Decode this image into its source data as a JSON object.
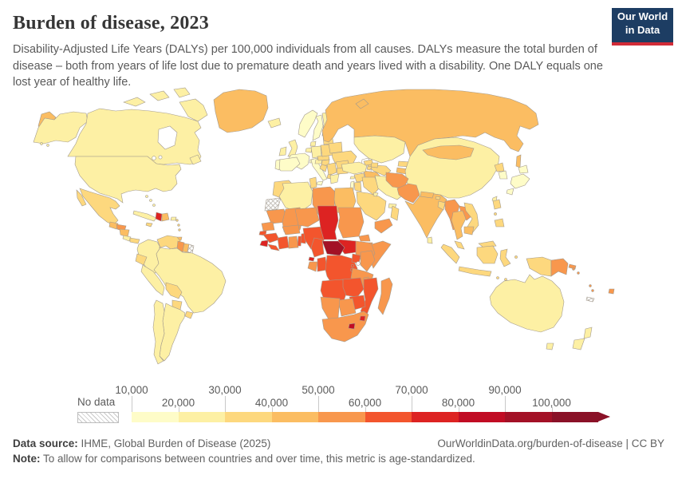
{
  "header": {
    "title": "Burden of disease, 2023",
    "subtitle": "Disability-Adjusted Life Years (DALYs) per 100,000 individuals from all causes. DALYs measure the total burden of disease – both from years of life lost due to premature death and years lived with a disability. One DALY equals one lost year of healthy life."
  },
  "logo": {
    "line1": "Our World",
    "line2": "in Data",
    "bg_color": "#1d3d63",
    "accent_color": "#d22b37"
  },
  "legend": {
    "no_data_label": "No data",
    "tick_labels": [
      "10,000",
      "20,000",
      "30,000",
      "40,000",
      "50,000",
      "60,000",
      "70,000",
      "80,000",
      "90,000",
      "100,000"
    ]
  },
  "footer": {
    "data_source_label": "Data source:",
    "data_source_text": " IHME, Global Burden of Disease (2025)",
    "link_text": "OurWorldinData.org/burden-of-disease | CC BY",
    "note_label": "Note:",
    "note_text": " To allow for comparisons between countries and over time, this metric is age-standardized."
  },
  "chart_data": {
    "type": "choropleth",
    "title": "Burden of disease, 2023",
    "unit": "DALYs per 100,000 individuals",
    "year": 2023,
    "legend_position": "bottom",
    "no_data_color": "hatched",
    "bins": [
      {
        "label": "10,000–20,000",
        "color": "#fefcc8"
      },
      {
        "label": "20,000–30,000",
        "color": "#fdf0a4"
      },
      {
        "label": "30,000–40,000",
        "color": "#fdd87e"
      },
      {
        "label": "40,000–50,000",
        "color": "#fbbd62"
      },
      {
        "label": "50,000–60,000",
        "color": "#f8974d"
      },
      {
        "label": "60,000–70,000",
        "color": "#f3552d"
      },
      {
        "label": "70,000–80,000",
        "color": "#dd2322"
      },
      {
        "label": "80,000–90,000",
        "color": "#c10c24"
      },
      {
        "label": "90,000–100,000",
        "color": "#a31126"
      },
      {
        "label": "100,000+",
        "color": "#8a1127"
      }
    ],
    "countries": {
      "Russia": 4,
      "Canada": 2,
      "United States": 2,
      "Greenland": 4,
      "Iceland": 2,
      "Mexico": 3,
      "Guatemala": 4,
      "Honduras": 5,
      "Nicaragua": 4,
      "Costa Rica": 2,
      "Panama": 3,
      "Cuba": 2,
      "Jamaica": 3,
      "Haiti": 7,
      "Dominican Republic": 4,
      "Puerto Rico": 2,
      "Bahamas": 2,
      "Lesser Antilles": 3,
      "Trinidad and Tobago": 4,
      "Colombia": 2,
      "Venezuela": 3,
      "Guyana": 5,
      "Suriname": 4,
      "French Guiana": "no_data",
      "Ecuador": 3,
      "Peru": 2,
      "Brazil": 2,
      "Bolivia": 3,
      "Paraguay": 3,
      "Uruguay": 3,
      "Argentina": 2,
      "Chile": 2,
      "Ireland": 2,
      "United Kingdom": 2,
      "Norway": 1,
      "Sweden": 1,
      "Finland": 2,
      "Denmark": 2,
      "Netherlands": 2,
      "Germany": 2,
      "France": 1,
      "Spain": 1,
      "Portugal": 1,
      "Italy": 1,
      "Switzerland": 1,
      "Austria": 2,
      "Czechia": 3,
      "Poland": 3,
      "Baltic states": 3,
      "Belarus": 3,
      "Ukraine": 3,
      "Hungary": 3,
      "Romania": 3,
      "Bulgaria": 3,
      "Serbia": 3,
      "Croatia": 3,
      "Albania": 3,
      "Greece": 2,
      "Turkey": 2,
      "Cyprus": 2,
      "Georgia": 3,
      "Azerbaijan": 3,
      "Armenia": 3,
      "Syria": 3,
      "Lebanon": 2,
      "Israel": 1,
      "Jordan": 3,
      "Iraq": 3,
      "Iran": 2,
      "Saudi Arabia": 3,
      "Kuwait": 2,
      "United Arab Emirates": 2,
      "Oman": 3,
      "Yemen": 5,
      "Kazakhstan": 2,
      "Uzbekistan": 3,
      "Turkmenistan": 4,
      "Kyrgyzstan": 3,
      "Tajikistan": 4,
      "Afghanistan": 5,
      "Pakistan": 5,
      "India": 4,
      "Nepal": 4,
      "Bhutan": 3,
      "Bangladesh": 3,
      "Sri Lanka": 2,
      "China": 2,
      "Mongolia": 4,
      "North Korea": 3,
      "South Korea": 1,
      "Japan": 1,
      "Taiwan": 2,
      "Myanmar": 5,
      "Thailand": 4,
      "Laos": 5,
      "Vietnam": 3,
      "Cambodia": 4,
      "Malaysia": 3,
      "Philippines": 3,
      "Indonesia": 3,
      "Papua New Guinea": 5,
      "Solomon Islands": 5,
      "Vanuatu": 5,
      "Fiji": 5,
      "New Caledonia": "no_data",
      "Australia": 2,
      "New Zealand": 2,
      "Morocco": 3,
      "Western Sahara": "no_data",
      "Algeria": 2,
      "Tunisia": 3,
      "Libya": 5,
      "Egypt": 4,
      "Mauritania": 5,
      "Mali": 5,
      "Niger": 5,
      "Chad": 7,
      "Sudan": 5,
      "Eritrea": 5,
      "Djibouti": 5,
      "Ethiopia": 5,
      "Somalia": 5,
      "Senegal": 5,
      "Guinea-Bissau": 6,
      "Guinea": 6,
      "Sierra Leone": 7,
      "Liberia": 6,
      "Cote d'Ivoire": 6,
      "Ghana": 5,
      "Togo": 6,
      "Benin": 6,
      "Burkina Faso": 5,
      "Nigeria": 6,
      "Cameroon": 6,
      "Central African Republic": 9,
      "South Sudan": 7,
      "Equatorial Guinea": 7,
      "Gabon": 5,
      "Congo": 6,
      "Democratic Republic of Congo": 6,
      "Uganda": 6,
      "Kenya": 5,
      "Rwanda": 6,
      "Burundi": 6,
      "Tanzania": 5,
      "Angola": 6,
      "Zambia": 6,
      "Malawi": 5,
      "Mozambique": 6,
      "Zimbabwe": 6,
      "Botswana": 5,
      "Namibia": 5,
      "South Africa": 5,
      "Lesotho": 8,
      "Eswatini": 7,
      "Madagascar": 5
    }
  }
}
